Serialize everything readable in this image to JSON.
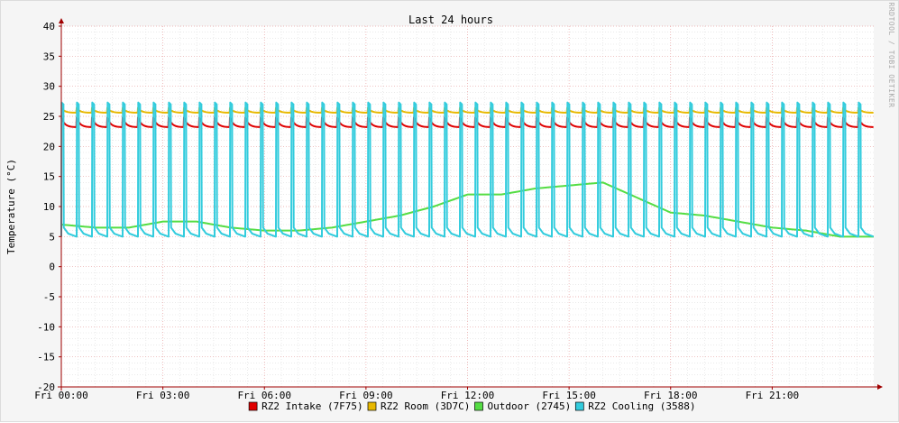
{
  "chart_data": {
    "type": "line",
    "title": "Last 24 hours",
    "ylabel": "Temperature (°C)",
    "xlabel": "",
    "watermark": "RRDTOOL / TOBI OETIKER",
    "ylim": [
      -20,
      40
    ],
    "yticks": [
      40,
      35,
      30,
      25,
      20,
      15,
      10,
      5,
      0,
      -5,
      -10,
      -15,
      -20
    ],
    "xlim_hours": [
      0,
      24
    ],
    "xticks": [
      {
        "hour": 0,
        "label": "Fri 00:00"
      },
      {
        "hour": 3,
        "label": "Fri 03:00"
      },
      {
        "hour": 6,
        "label": "Fri 06:00"
      },
      {
        "hour": 9,
        "label": "Fri 09:00"
      },
      {
        "hour": 12,
        "label": "Fri 12:00"
      },
      {
        "hour": 15,
        "label": "Fri 15:00"
      },
      {
        "hour": 18,
        "label": "Fri 18:00"
      },
      {
        "hour": 21,
        "label": "Fri 21:00"
      }
    ],
    "grid": true,
    "legend_position": "bottom",
    "series": [
      {
        "name": "RZ2 Intake (7F75)",
        "color": "#e00000",
        "pattern": "sawtooth",
        "high": 24.8,
        "low": 23.2,
        "cycles": 53
      },
      {
        "name": "RZ2 Room (3D7C)",
        "color": "#e8b800",
        "pattern": "sawtooth",
        "high": 26.4,
        "low": 25.6,
        "cycles": 53
      },
      {
        "name": "Outdoor (2745)",
        "color": "#55dd44",
        "pattern": "smooth",
        "x": [
          0,
          1,
          2,
          3,
          4,
          5,
          6,
          7,
          8,
          9,
          10,
          11,
          12,
          13,
          14,
          15,
          16,
          17,
          18,
          19,
          20,
          21,
          22,
          23,
          24
        ],
        "values": [
          7,
          6.5,
          6.5,
          7.5,
          7.5,
          6.5,
          6,
          6,
          6.5,
          7.5,
          8.5,
          10,
          12,
          12,
          13,
          13.5,
          14,
          11.5,
          9,
          8.5,
          7.5,
          6.5,
          6,
          5,
          5
        ]
      },
      {
        "name": "RZ2 Cooling (3588)",
        "color": "#33ccdd",
        "pattern": "spike",
        "peak": 27.3,
        "base": 5,
        "cycles": 53
      }
    ]
  }
}
